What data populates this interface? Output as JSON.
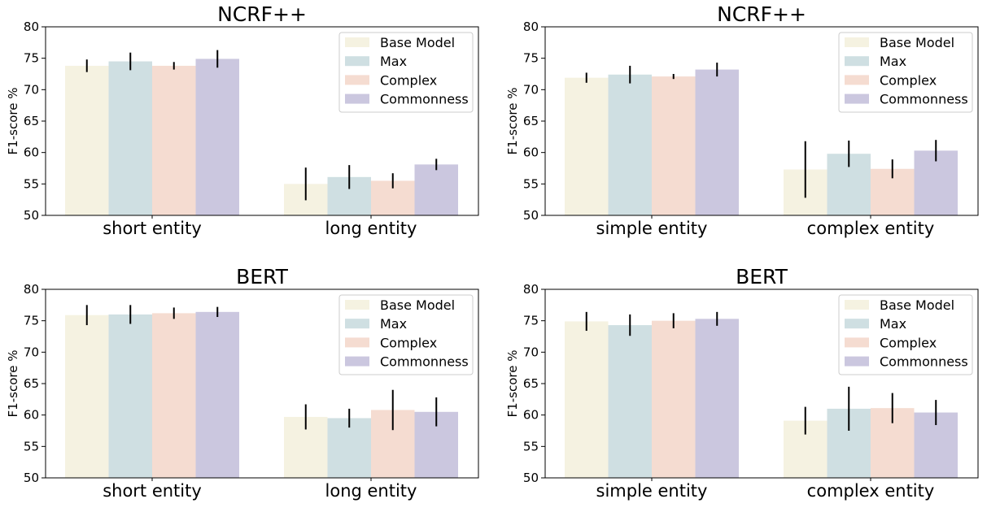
{
  "colors": {
    "Base Model": "#f5f2e1",
    "Max": "#cfdfe2",
    "Complex": "#f5dcd1",
    "Commonness": "#cbc7df",
    "axis": "#000000",
    "error": "#000000"
  },
  "chart_data": [
    {
      "type": "bar",
      "title": "NCRF++",
      "ylabel": "F1-score %",
      "ylim": [
        50,
        80
      ],
      "yticks": [
        50,
        55,
        60,
        65,
        70,
        75,
        80
      ],
      "categories": [
        "short entity",
        "long entity"
      ],
      "legend_position": "top-right",
      "series": [
        {
          "name": "Base Model",
          "values": [
            73.8,
            55.0
          ],
          "errors": [
            1.0,
            2.6
          ]
        },
        {
          "name": "Max",
          "values": [
            74.5,
            56.1
          ],
          "errors": [
            1.4,
            1.9
          ]
        },
        {
          "name": "Complex",
          "values": [
            73.8,
            55.5
          ],
          "errors": [
            0.6,
            1.2
          ]
        },
        {
          "name": "Commonness",
          "values": [
            74.9,
            58.1
          ],
          "errors": [
            1.4,
            0.9
          ]
        }
      ]
    },
    {
      "type": "bar",
      "title": "NCRF++",
      "ylabel": "F1-score %",
      "ylim": [
        50,
        80
      ],
      "yticks": [
        50,
        55,
        60,
        65,
        70,
        75,
        80
      ],
      "categories": [
        "simple entity",
        "complex entity"
      ],
      "legend_position": "top-right",
      "series": [
        {
          "name": "Base Model",
          "values": [
            71.9,
            57.3
          ],
          "errors": [
            0.8,
            4.5
          ]
        },
        {
          "name": "Max",
          "values": [
            72.4,
            59.8
          ],
          "errors": [
            1.4,
            2.1
          ]
        },
        {
          "name": "Complex",
          "values": [
            72.1,
            57.4
          ],
          "errors": [
            0.4,
            1.5
          ]
        },
        {
          "name": "Commonness",
          "values": [
            73.2,
            60.3
          ],
          "errors": [
            1.1,
            1.7
          ]
        }
      ]
    },
    {
      "type": "bar",
      "title": "BERT",
      "ylabel": "F1-score %",
      "ylim": [
        50,
        80
      ],
      "yticks": [
        50,
        55,
        60,
        65,
        70,
        75,
        80
      ],
      "categories": [
        "short entity",
        "long entity"
      ],
      "legend_position": "top-right",
      "series": [
        {
          "name": "Base Model",
          "values": [
            75.9,
            59.7
          ],
          "errors": [
            1.6,
            2.0
          ]
        },
        {
          "name": "Max",
          "values": [
            76.0,
            59.5
          ],
          "errors": [
            1.5,
            1.5
          ]
        },
        {
          "name": "Complex",
          "values": [
            76.2,
            60.8
          ],
          "errors": [
            0.9,
            3.2
          ]
        },
        {
          "name": "Commonness",
          "values": [
            76.4,
            60.5
          ],
          "errors": [
            0.8,
            2.3
          ]
        }
      ]
    },
    {
      "type": "bar",
      "title": "BERT",
      "ylabel": "F1-score %",
      "ylim": [
        50,
        80
      ],
      "yticks": [
        50,
        55,
        60,
        65,
        70,
        75,
        80
      ],
      "categories": [
        "simple entity",
        "complex entity"
      ],
      "legend_position": "top-right",
      "series": [
        {
          "name": "Base Model",
          "values": [
            74.9,
            59.1
          ],
          "errors": [
            1.5,
            2.2
          ]
        },
        {
          "name": "Max",
          "values": [
            74.3,
            61.0
          ],
          "errors": [
            1.7,
            3.5
          ]
        },
        {
          "name": "Complex",
          "values": [
            75.0,
            61.1
          ],
          "errors": [
            1.2,
            2.4
          ]
        },
        {
          "name": "Commonness",
          "values": [
            75.3,
            60.4
          ],
          "errors": [
            1.1,
            2.0
          ]
        }
      ]
    }
  ]
}
